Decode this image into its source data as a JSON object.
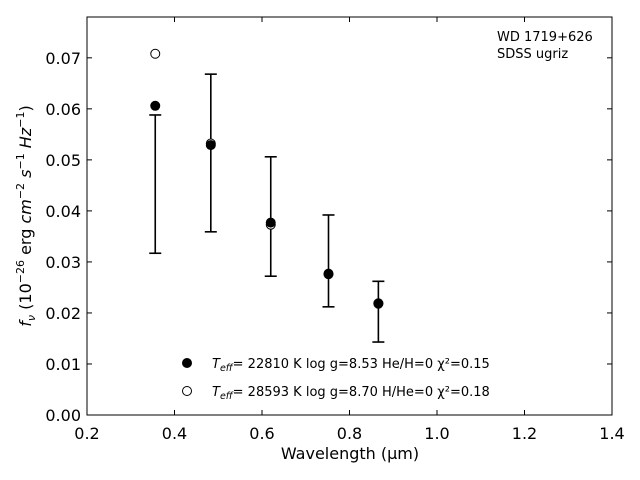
{
  "chart_data": {
    "type": "scatter",
    "title": "",
    "xlabel": "Wavelength (μm)",
    "ylabel": "f_ν (10^-26 erg cm^-2 s^-1 Hz^-1)",
    "xlim": [
      0.2,
      1.4
    ],
    "ylim": [
      0.0,
      0.078
    ],
    "xticks": [
      0.2,
      0.4,
      0.6,
      0.8,
      1.0,
      1.2,
      1.4
    ],
    "xtick_labels": [
      "0.2",
      "0.4",
      "0.6",
      "0.8",
      "1.0",
      "1.2",
      "1.4"
    ],
    "yticks": [
      0.0,
      0.01,
      0.02,
      0.03,
      0.04,
      0.05,
      0.06,
      0.07
    ],
    "ytick_labels": [
      "0.00",
      "0.01",
      "0.02",
      "0.03",
      "0.04",
      "0.05",
      "0.06",
      "0.07"
    ],
    "grid": false,
    "annotation": [
      "WD 1719+626",
      "SDSS ugriz"
    ],
    "observed": {
      "x": [
        0.356,
        0.483,
        0.62,
        0.752,
        0.866
      ],
      "y": [
        0.0453,
        0.0513,
        0.0388,
        0.0302,
        0.0202
      ],
      "y_low": [
        0.0317,
        0.0359,
        0.0272,
        0.0212,
        0.0143
      ],
      "y_high": [
        0.0588,
        0.0668,
        0.0506,
        0.0392,
        0.0262
      ]
    },
    "series": [
      {
        "label_prefix": "T",
        "label_sub": "eff",
        "label_text": "= 22810 K  log g=8.53  He/H=0  χ²=0.15",
        "marker": "filled-circle",
        "x": [
          0.356,
          0.483,
          0.62,
          0.752,
          0.866
        ],
        "y": [
          0.0606,
          0.0529,
          0.0377,
          0.0277,
          0.0219
        ]
      },
      {
        "label_prefix": "T",
        "label_sub": "eff",
        "label_text": "= 28593 K  log g=8.70  H/He=0  χ²=0.18",
        "marker": "open-circle",
        "x": [
          0.356,
          0.483,
          0.62,
          0.752,
          0.866
        ],
        "y": [
          0.0708,
          0.0532,
          0.0373,
          0.0276,
          0.0218
        ]
      }
    ],
    "legend_position": "bottom-center",
    "colors": {
      "axis": "#000000",
      "marker": "#000000",
      "background": "#ffffff"
    }
  }
}
